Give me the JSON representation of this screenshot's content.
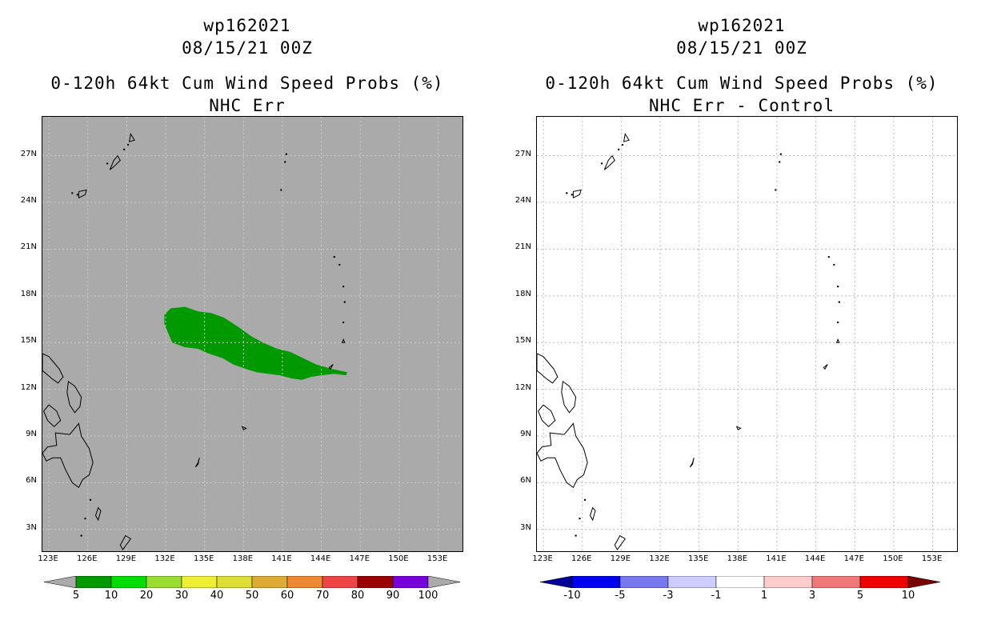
{
  "panels": [
    {
      "storm": "wp162021",
      "datetime": "08/15/21 00Z",
      "title": "0-120h 64kt Cum Wind Speed Probs (%)",
      "subtitle": "NHC Err",
      "background": "#aaaaaa",
      "grid_color": "#cccccc",
      "colorbar": {
        "colors": [
          "#009900",
          "#00dd00",
          "#99dd33",
          "#eeee33",
          "#dddd33",
          "#ddaa33",
          "#ee8833",
          "#ee4444",
          "#990000",
          "#7700dd"
        ],
        "labels": [
          "5",
          "10",
          "20",
          "30",
          "40",
          "50",
          "60",
          "70",
          "80",
          "90",
          "100"
        ],
        "under_color": "#aaaaaa",
        "over_color": "#aaaaaa"
      },
      "shaded_region": {
        "name": "5-10% probability",
        "color": "#009900"
      }
    },
    {
      "storm": "wp162021",
      "datetime": "08/15/21 00Z",
      "title": "0-120h 64kt Cum Wind Speed Probs (%)",
      "subtitle": "NHC Err - Control",
      "background": "#ffffff",
      "grid_color": "#bbbbbb",
      "colorbar": {
        "colors": [
          "#0000ee",
          "#7777ee",
          "#ccccff",
          "#ffffff",
          "#ffcccc",
          "#ee7777",
          "#ee0000"
        ],
        "labels": [
          "-10",
          "-5",
          "-3",
          "-1",
          "1",
          "3",
          "5",
          "10"
        ],
        "under_color": "#000099",
        "over_color": "#770000"
      }
    }
  ],
  "axes": {
    "lon_labels": [
      "123E",
      "126E",
      "129E",
      "132E",
      "135E",
      "138E",
      "141E",
      "144E",
      "147E",
      "150E",
      "153E"
    ],
    "lat_labels": [
      "27N",
      "24N",
      "21N",
      "18N",
      "15N",
      "12N",
      "9N",
      "6N",
      "3N"
    ],
    "lon_range": [
      122.5,
      155.0
    ],
    "lat_range": [
      1.5,
      29.5
    ]
  }
}
